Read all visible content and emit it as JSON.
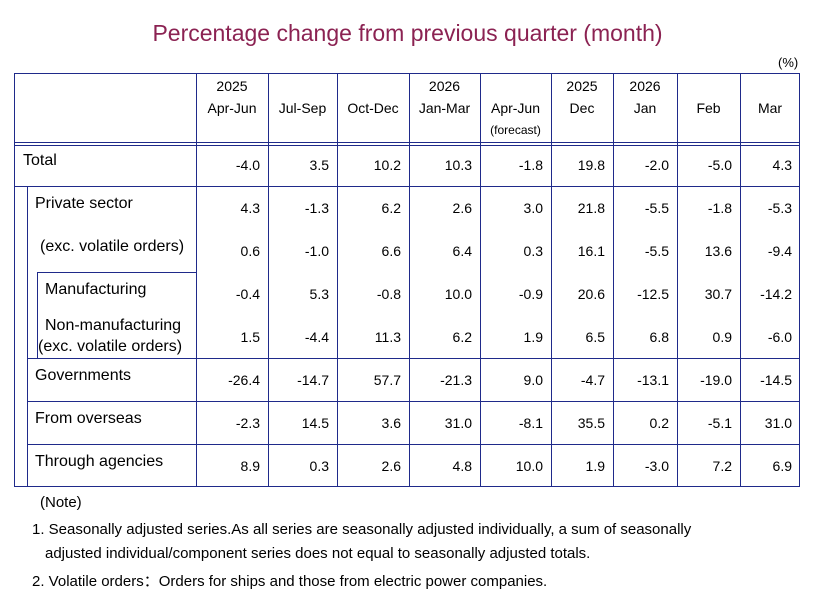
{
  "title": "Percentage change from previous quarter (month)",
  "unit": "(%)",
  "columns": [
    {
      "year": "2025",
      "period": "Apr-Jun",
      "extra": ""
    },
    {
      "year": "",
      "period": "Jul-Sep",
      "extra": ""
    },
    {
      "year": "",
      "period": "Oct-Dec",
      "extra": ""
    },
    {
      "year": "2026",
      "period": "Jan-Mar",
      "extra": ""
    },
    {
      "year": "",
      "period": "Apr-Jun",
      "extra": "(forecast)"
    },
    {
      "year": "2025",
      "period": "Dec",
      "extra": ""
    },
    {
      "year": "2026",
      "period": "Jan",
      "extra": ""
    },
    {
      "year": "",
      "period": "Feb",
      "extra": ""
    },
    {
      "year": "",
      "period": "Mar",
      "extra": ""
    }
  ],
  "rows": [
    {
      "label": "Total",
      "label2": "",
      "values": [
        "-4.0",
        "3.5",
        "10.2",
        "10.3",
        "-1.8",
        "19.8",
        "-2.0",
        "-5.0",
        "4.3"
      ]
    },
    {
      "label": "Private sector",
      "label2": "",
      "values": [
        "4.3",
        "-1.3",
        "6.2",
        "2.6",
        "3.0",
        "21.8",
        "-5.5",
        "-1.8",
        "-5.3"
      ]
    },
    {
      "label": "(exc. volatile orders)",
      "label2": "",
      "values": [
        "0.6",
        "-1.0",
        "6.6",
        "6.4",
        "0.3",
        "16.1",
        "-5.5",
        "13.6",
        "-9.4"
      ]
    },
    {
      "label": "Manufacturing",
      "label2": "",
      "values": [
        "-0.4",
        "5.3",
        "-0.8",
        "10.0",
        "-0.9",
        "20.6",
        "-12.5",
        "30.7",
        "-14.2"
      ]
    },
    {
      "label": "Non-manufacturing",
      "label2": "(exc. volatile orders)",
      "values": [
        "1.5",
        "-4.4",
        "11.3",
        "6.2",
        "1.9",
        "6.5",
        "6.8",
        "0.9",
        "-6.0"
      ]
    },
    {
      "label": "Governments",
      "label2": "",
      "values": [
        "-26.4",
        "-14.7",
        "57.7",
        "-21.3",
        "9.0",
        "-4.7",
        "-13.1",
        "-19.0",
        "-14.5"
      ]
    },
    {
      "label": "From overseas",
      "label2": "",
      "values": [
        "-2.3",
        "14.5",
        "3.6",
        "31.0",
        "-8.1",
        "35.5",
        "0.2",
        "-5.1",
        "31.0"
      ]
    },
    {
      "label": "Through agencies",
      "label2": "",
      "values": [
        "8.9",
        "0.3",
        "2.6",
        "4.8",
        "10.0",
        "1.9",
        "-3.0",
        "7.2",
        "6.9"
      ]
    }
  ],
  "notes": {
    "heading": "(Note)",
    "note1_line1": "1. Seasonally adjusted series.As all series are seasonally adjusted individually,  a sum of seasonally",
    "note1_line2": "adjusted individual/component series does not equal to seasonally adjusted totals.",
    "note2": "2. Volatile orders：Orders for ships and those from electric power companies."
  }
}
